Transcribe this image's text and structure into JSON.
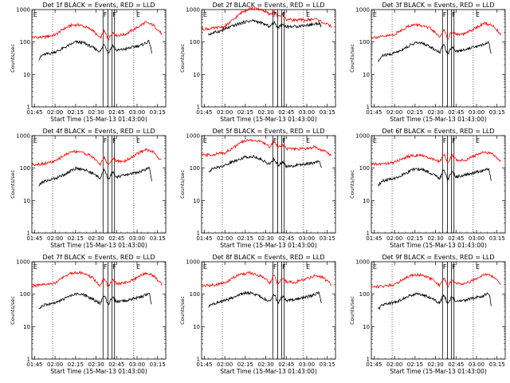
{
  "chart_data": {
    "type": "line",
    "xlabel": "Start Time (15-Mar-13 01:43:00)",
    "ylabel": "Counts/sec",
    "yscale": "log",
    "ylim": [
      1,
      1000
    ],
    "xlim": [
      1.7167,
      3.35
    ],
    "x_ticks": [
      1.75,
      2.0,
      2.25,
      2.5,
      2.75,
      3.0,
      3.25
    ],
    "x_tick_labels": [
      "01:45",
      "02:00",
      "02:15",
      "02:30",
      "02:45",
      "03:00",
      "03:15"
    ],
    "y_ticks": [
      1,
      10,
      100,
      1000
    ],
    "y_tick_labels": [
      "1",
      "10",
      "100",
      "1000"
    ],
    "dotted_lines_x": [
      1.97,
      2.96
    ],
    "solid_lines_x": [
      2.585,
      2.645,
      2.695,
      2.725
    ],
    "flag_labels": [
      {
        "text": "E",
        "x": 1.735
      },
      {
        "text": "F",
        "x": 2.59
      },
      {
        "text": "F",
        "x": 2.7
      },
      {
        "text": "E",
        "x": 2.99
      }
    ],
    "colors": {
      "events": "#000000",
      "lld": "#ff0000"
    },
    "panels": [
      {
        "title": "Det 1f BLACK = Events, RED = LLD",
        "series": [
          {
            "color": "#ff0000",
            "x": [
              1.72,
              1.85,
              2.0,
              2.1,
              2.2,
              2.3,
              2.45,
              2.55,
              2.6,
              2.65,
              2.7,
              2.75,
              2.85,
              3.0,
              3.1,
              3.2,
              3.3
            ],
            "y": [
              140,
              140,
              165,
              250,
              330,
              340,
              240,
              130,
              220,
              120,
              200,
              160,
              170,
              280,
              400,
              330,
              180
            ]
          },
          {
            "color": "#000000",
            "x": [
              1.8,
              1.85,
              1.95,
              2.05,
              2.15,
              2.25,
              2.35,
              2.45,
              2.55,
              2.6,
              2.65,
              2.7,
              2.75,
              2.85,
              2.95,
              3.05,
              3.15,
              3.18
            ],
            "y": [
              30,
              40,
              45,
              55,
              75,
              100,
              95,
              70,
              50,
              90,
              45,
              80,
              55,
              60,
              70,
              80,
              105,
              45
            ]
          }
        ]
      },
      {
        "title": "Det 2f BLACK = Events, RED = LLD",
        "series": [
          {
            "color": "#ff0000",
            "x": [
              1.72,
              1.85,
              2.0,
              2.1,
              2.2,
              2.3,
              2.45,
              2.55,
              2.6,
              2.65,
              2.7,
              2.75,
              2.85,
              3.0,
              3.1,
              3.2,
              3.3
            ],
            "y": [
              250,
              260,
              300,
              480,
              800,
              1100,
              1000,
              700,
              900,
              600,
              700,
              500,
              480,
              470,
              520,
              400,
              300
            ]
          },
          {
            "color": "#000000",
            "x": [
              1.8,
              1.85,
              1.95,
              2.05,
              2.15,
              2.25,
              2.35,
              2.45,
              2.55,
              2.6,
              2.65,
              2.7,
              2.75,
              2.85,
              2.95,
              3.05,
              3.15,
              3.18
            ],
            "y": [
              170,
              190,
              220,
              280,
              350,
              420,
              460,
              380,
              300,
              400,
              280,
              350,
              300,
              300,
              320,
              340,
              380,
              300
            ]
          }
        ]
      },
      {
        "title": "Det 3f BLACK = Events, RED = LLD",
        "series": [
          {
            "color": "#ff0000",
            "x": [
              1.72,
              1.85,
              2.0,
              2.1,
              2.2,
              2.3,
              2.45,
              2.55,
              2.6,
              2.65,
              2.7,
              2.75,
              2.85,
              3.0,
              3.1,
              3.2,
              3.3
            ],
            "y": [
              140,
              145,
              170,
              250,
              330,
              340,
              250,
              140,
              230,
              130,
              210,
              170,
              175,
              280,
              380,
              320,
              170
            ]
          },
          {
            "color": "#000000",
            "x": [
              1.8,
              1.85,
              1.95,
              2.05,
              2.15,
              2.25,
              2.35,
              2.45,
              2.55,
              2.6,
              2.65,
              2.7,
              2.75,
              2.85,
              2.95,
              3.05,
              3.15,
              3.18
            ],
            "y": [
              25,
              38,
              42,
              52,
              70,
              95,
              90,
              68,
              48,
              85,
              42,
              75,
              52,
              58,
              68,
              78,
              100,
              40
            ]
          }
        ]
      },
      {
        "title": "Det 4f BLACK = Events, RED = LLD",
        "series": [
          {
            "color": "#ff0000",
            "x": [
              1.72,
              1.85,
              2.0,
              2.1,
              2.2,
              2.3,
              2.45,
              2.55,
              2.6,
              2.65,
              2.7,
              2.75,
              2.85,
              3.0,
              3.1,
              3.2,
              3.3
            ],
            "y": [
              130,
              135,
              160,
              240,
              320,
              330,
              230,
              130,
              220,
              120,
              200,
              160,
              165,
              270,
              380,
              310,
              170
            ]
          },
          {
            "color": "#000000",
            "x": [
              1.8,
              1.85,
              1.95,
              2.05,
              2.15,
              2.25,
              2.35,
              2.45,
              2.55,
              2.6,
              2.65,
              2.7,
              2.75,
              2.85,
              2.95,
              3.05,
              3.15,
              3.18
            ],
            "y": [
              28,
              38,
              44,
              54,
              72,
              98,
              92,
              70,
              50,
              88,
              44,
              78,
              54,
              60,
              70,
              80,
              100,
              42
            ]
          }
        ]
      },
      {
        "title": "Det 5f BLACK = Events, RED = LLD",
        "series": [
          {
            "color": "#ff0000",
            "x": [
              1.72,
              1.85,
              2.0,
              2.1,
              2.2,
              2.3,
              2.45,
              2.55,
              2.6,
              2.65,
              2.7,
              2.75,
              2.85,
              3.0,
              3.1,
              3.2,
              3.3
            ],
            "y": [
              250,
              260,
              300,
              420,
              620,
              750,
              650,
              450,
              700,
              420,
              550,
              400,
              380,
              400,
              450,
              350,
              250
            ]
          },
          {
            "color": "#000000",
            "x": [
              1.8,
              1.85,
              1.95,
              2.05,
              2.15,
              2.25,
              2.35,
              2.45,
              2.55,
              2.6,
              2.65,
              2.7,
              2.75,
              2.85,
              2.95,
              3.05,
              3.15,
              3.18
            ],
            "y": [
              80,
              95,
              110,
              140,
              180,
              220,
              230,
              180,
              130,
              190,
              120,
              160,
              110,
              120,
              130,
              140,
              160,
              110
            ]
          }
        ]
      },
      {
        "title": "Det 6f BLACK = Events, RED = LLD",
        "series": [
          {
            "color": "#ff0000",
            "x": [
              1.72,
              1.85,
              2.0,
              2.1,
              2.2,
              2.3,
              2.45,
              2.55,
              2.6,
              2.65,
              2.7,
              2.75,
              2.85,
              3.0,
              3.1,
              3.2,
              3.3
            ],
            "y": [
              130,
              135,
              150,
              200,
              240,
              250,
              200,
              150,
              280,
              140,
              250,
              180,
              170,
              250,
              320,
              260,
              160
            ]
          },
          {
            "color": "#000000",
            "x": [
              1.8,
              1.85,
              1.95,
              2.05,
              2.15,
              2.25,
              2.35,
              2.45,
              2.55,
              2.6,
              2.65,
              2.7,
              2.75,
              2.85,
              2.95,
              3.05,
              3.15,
              3.18
            ],
            "y": [
              30,
              40,
              45,
              55,
              72,
              95,
              90,
              68,
              48,
              90,
              44,
              78,
              54,
              60,
              70,
              80,
              95,
              40
            ]
          }
        ]
      },
      {
        "title": "Det 7f BLACK = Events, RED = LLD",
        "series": [
          {
            "color": "#ff0000",
            "x": [
              1.72,
              1.85,
              2.0,
              2.1,
              2.2,
              2.3,
              2.45,
              2.55,
              2.6,
              2.65,
              2.7,
              2.75,
              2.85,
              3.0,
              3.1,
              3.2,
              3.3
            ],
            "y": [
              180,
              190,
              220,
              330,
              450,
              470,
              330,
              180,
              300,
              170,
              280,
              210,
              220,
              320,
              450,
              380,
              200
            ]
          },
          {
            "color": "#000000",
            "x": [
              1.8,
              1.85,
              1.95,
              2.05,
              2.15,
              2.25,
              2.35,
              2.45,
              2.55,
              2.6,
              2.65,
              2.7,
              2.75,
              2.85,
              2.95,
              3.05,
              3.15,
              3.18
            ],
            "y": [
              35,
              45,
              50,
              60,
              80,
              100,
              95,
              72,
              52,
              92,
              48,
              82,
              58,
              62,
              72,
              82,
              105,
              45
            ]
          }
        ]
      },
      {
        "title": "Det 8f BLACK = Events, RED = LLD",
        "series": [
          {
            "color": "#ff0000",
            "x": [
              1.72,
              1.85,
              2.0,
              2.1,
              2.2,
              2.3,
              2.45,
              2.55,
              2.6,
              2.65,
              2.7,
              2.75,
              2.85,
              3.0,
              3.1,
              3.2,
              3.3
            ],
            "y": [
              180,
              190,
              220,
              320,
              420,
              450,
              350,
              220,
              380,
              200,
              320,
              240,
              230,
              300,
              380,
              320,
              200
            ]
          },
          {
            "color": "#000000",
            "x": [
              1.8,
              1.85,
              1.95,
              2.05,
              2.15,
              2.25,
              2.35,
              2.45,
              2.55,
              2.6,
              2.65,
              2.7,
              2.75,
              2.85,
              2.95,
              3.05,
              3.15,
              3.18
            ],
            "y": [
              40,
              50,
              58,
              70,
              90,
              110,
              105,
              80,
              58,
              100,
              52,
              88,
              62,
              68,
              78,
              88,
              110,
              50
            ]
          }
        ]
      },
      {
        "title": "Det 9f BLACK = Events, RED = LLD",
        "series": [
          {
            "color": "#ff0000",
            "x": [
              1.72,
              1.85,
              2.0,
              2.1,
              2.2,
              2.3,
              2.45,
              2.55,
              2.6,
              2.65,
              2.7,
              2.75,
              2.85,
              3.0,
              3.1,
              3.2,
              3.3
            ],
            "y": [
              170,
              175,
              200,
              290,
              380,
              400,
              300,
              180,
              320,
              170,
              280,
              210,
              210,
              300,
              420,
              350,
              190
            ]
          },
          {
            "color": "#000000",
            "x": [
              1.8,
              1.85,
              1.95,
              2.05,
              2.15,
              2.25,
              2.35,
              2.45,
              2.55,
              2.6,
              2.65,
              2.7,
              2.75,
              2.85,
              2.95,
              3.05,
              3.15,
              3.18
            ],
            "y": [
              35,
              45,
              52,
              62,
              82,
              102,
              98,
              74,
              54,
              94,
              50,
              84,
              58,
              64,
              74,
              84,
              106,
              46
            ]
          }
        ]
      }
    ]
  }
}
